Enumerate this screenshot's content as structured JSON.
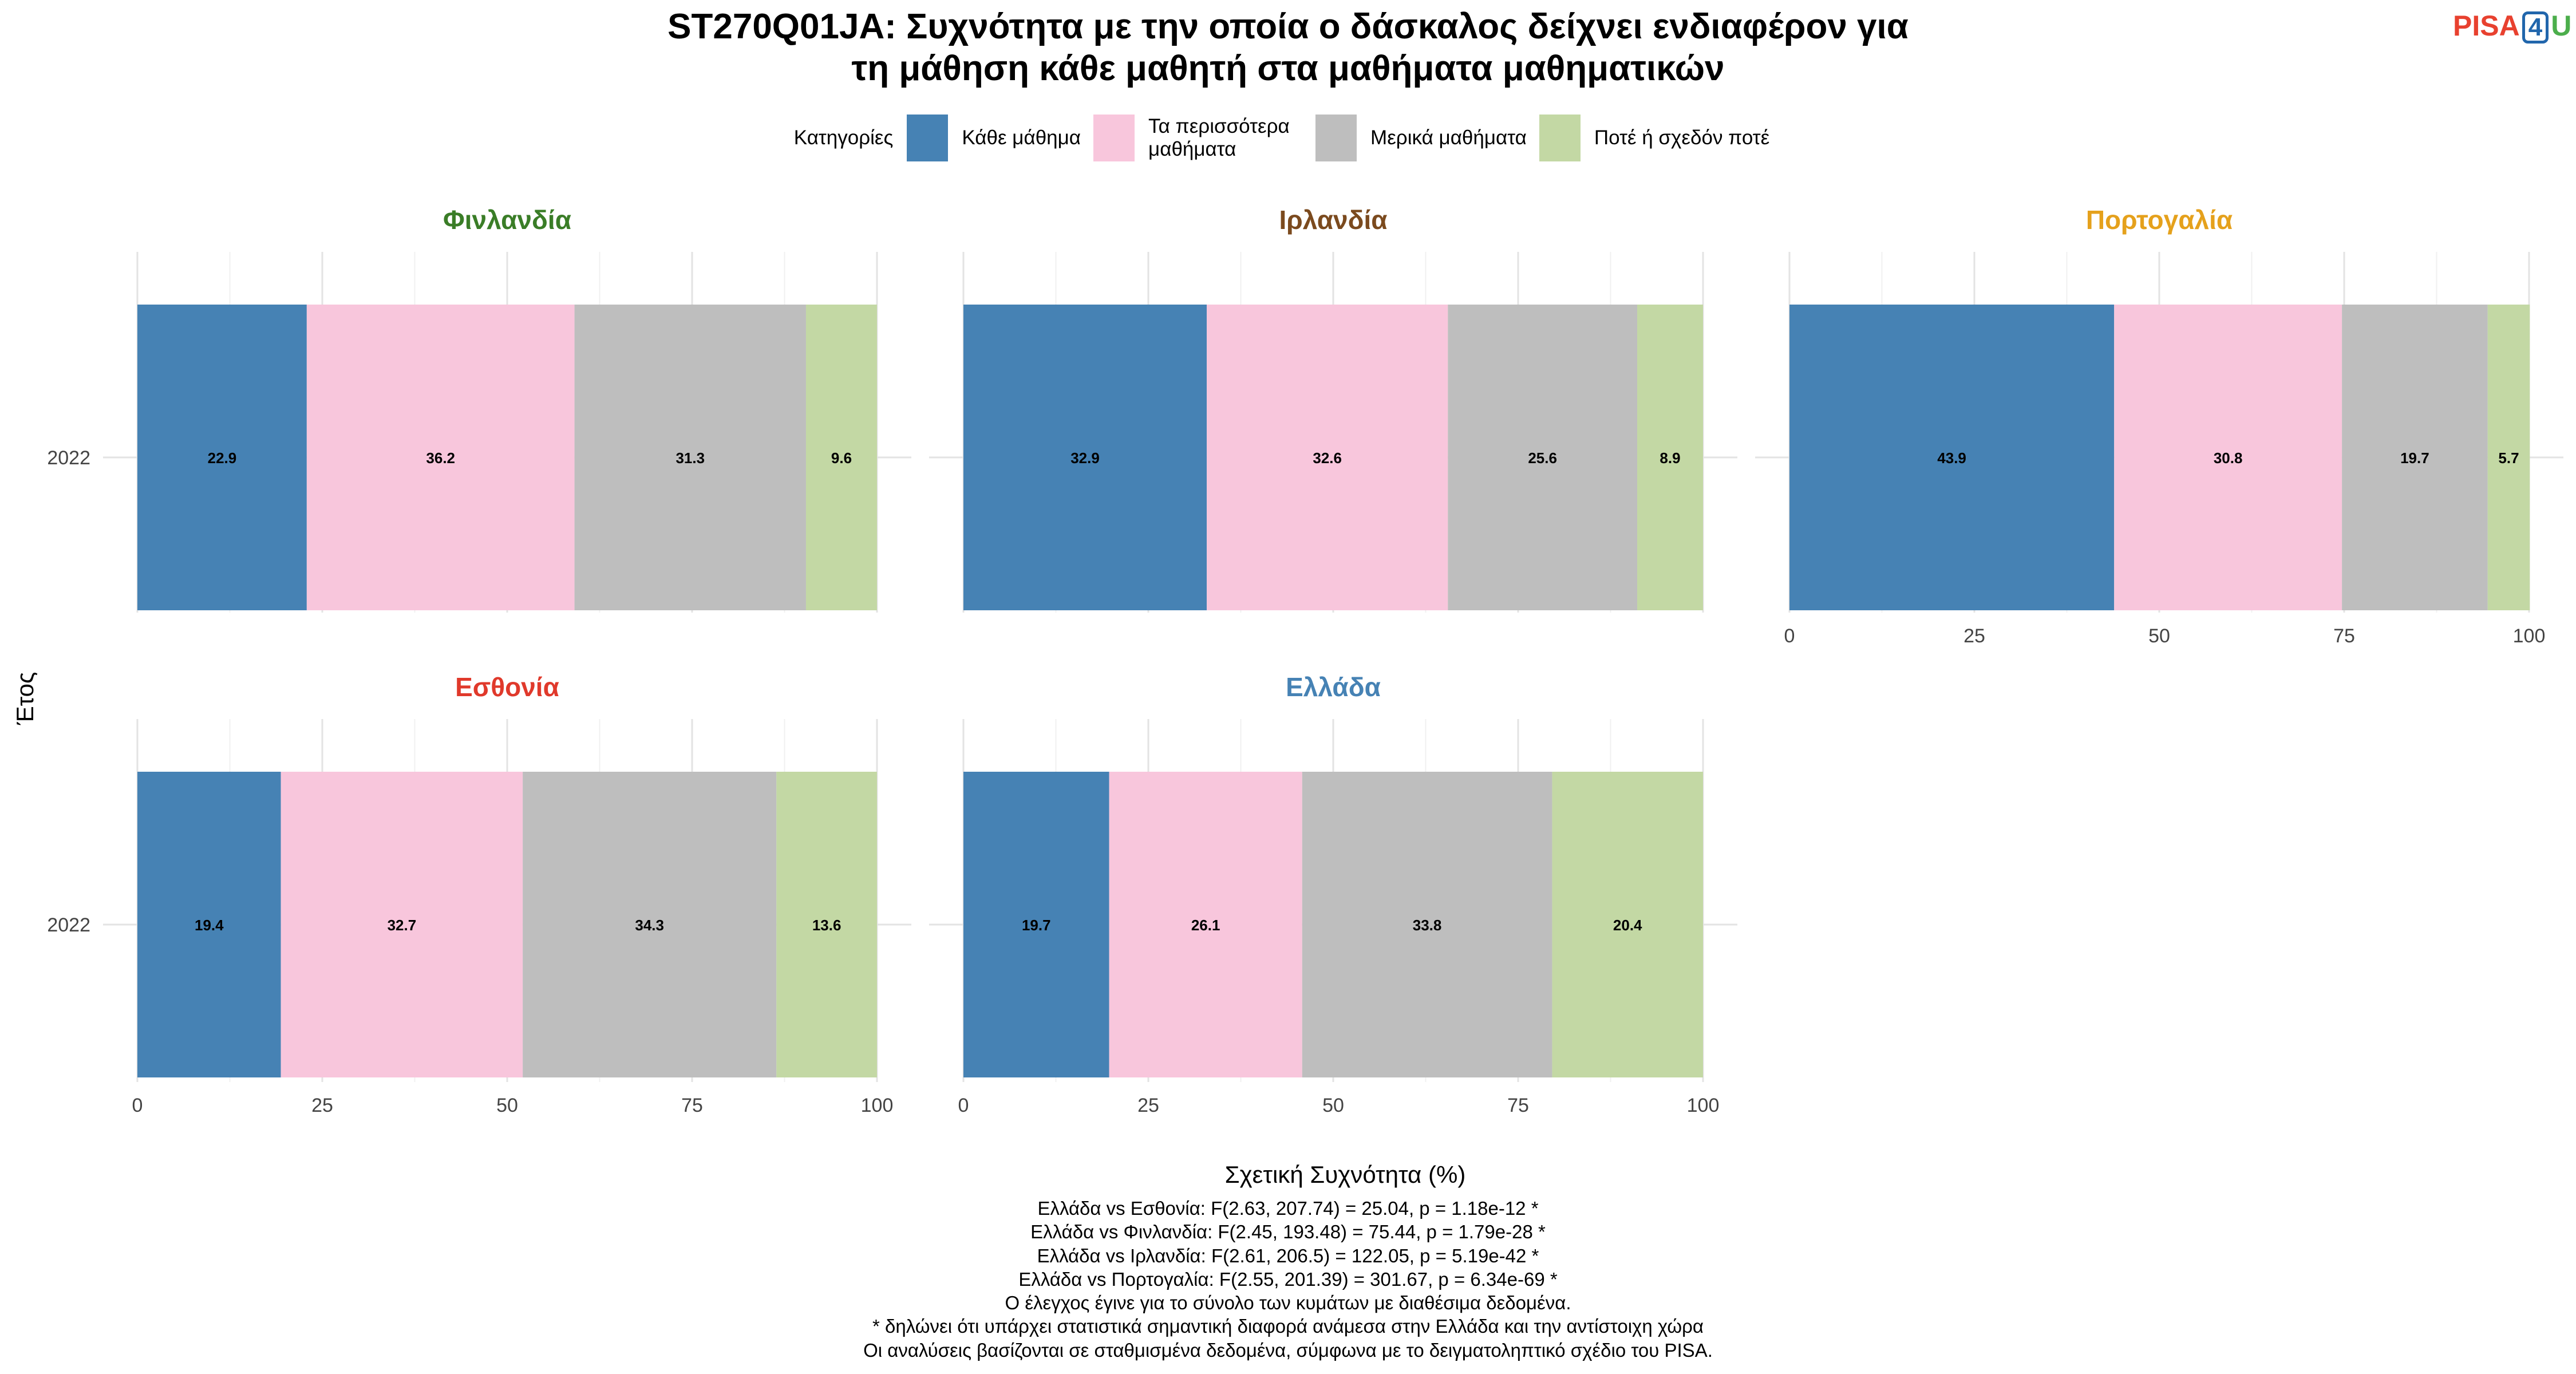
{
  "title_lines": [
    "ST270Q01JA: Συχνότητα με την οποία ο δάσκαλος δείχνει ενδιαφέρον για",
    "τη μάθηση κάθε μαθητή στα μαθήματα μαθηματικών"
  ],
  "logo": {
    "part1": "PISA",
    "part2": "4",
    "part3": "U"
  },
  "colors": {
    "series": [
      "#4682b4",
      "#f8c6dc",
      "#bebebe",
      "#c3d8a4"
    ]
  },
  "chart_data": {
    "type": "bar",
    "orientation": "horizontal-stacked",
    "legend_title": "Κατηγορίες",
    "legend_position": "top",
    "xlabel": "Σχετική Συχνότητα (%)",
    "ylabel": "Έτος",
    "xlim": [
      0,
      100
    ],
    "xticks": [
      0,
      25,
      50,
      75,
      100
    ],
    "grid": true,
    "categories": [
      "2022"
    ],
    "series_names": [
      "Κάθε μάθημα",
      "Τα περισσότερα μαθήματα",
      "Μερικά μαθήματα",
      "Ποτέ ή σχεδόν ποτέ"
    ],
    "panels": [
      {
        "name": "Φινλανδία",
        "color": "#3a7d27",
        "values": [
          22.9,
          36.2,
          31.3,
          9.6
        ]
      },
      {
        "name": "Ιρλανδία",
        "color": "#7b4a1e",
        "values": [
          32.9,
          32.6,
          25.6,
          8.9
        ]
      },
      {
        "name": "Πορτογαλία",
        "color": "#e5a11c",
        "values": [
          43.9,
          30.8,
          19.7,
          5.7
        ]
      },
      {
        "name": "Εσθονία",
        "color": "#e0392b",
        "values": [
          19.4,
          32.7,
          34.3,
          13.6
        ]
      },
      {
        "name": "Ελλάδα",
        "color": "#4682b4",
        "values": [
          19.7,
          26.1,
          33.8,
          20.4
        ]
      }
    ]
  },
  "notes": [
    "Ελλάδα vs Εσθονία: F(2.63, 207.74) = 25.04, p = 1.18e-12 *",
    "Ελλάδα vs Φινλανδία: F(2.45, 193.48) = 75.44, p = 1.79e-28 *",
    "Ελλάδα vs Ιρλανδία: F(2.61, 206.5) = 122.05, p = 5.19e-42 *",
    "Ελλάδα vs Πορτογαλία: F(2.55, 201.39) = 301.67, p = 6.34e-69 *",
    "Ο έλεγχος έγινε για το σύνολο των κυμάτων με διαθέσιμα δεδομένα.",
    "* δηλώνει ότι υπάρχει στατιστικά σημαντική διαφορά ανάμεσα στην Ελλάδα και την αντίστοιχη χώρα",
    "Οι αναλύσεις βασίζονται σε σταθμισμένα δεδομένα, σύμφωνα με το δειγματοληπτικό σχέδιο του PISA."
  ]
}
